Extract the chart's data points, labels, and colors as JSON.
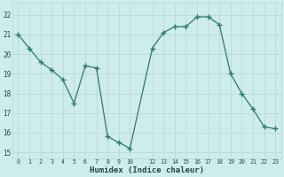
{
  "x": [
    0,
    1,
    2,
    3,
    4,
    5,
    6,
    7,
    8,
    9,
    10,
    12,
    13,
    14,
    15,
    16,
    17,
    18,
    19,
    20,
    21,
    22,
    23
  ],
  "y": [
    21.0,
    20.3,
    19.6,
    19.2,
    18.7,
    17.5,
    19.4,
    19.3,
    15.8,
    15.5,
    15.2,
    20.3,
    21.1,
    21.4,
    21.4,
    21.9,
    21.9,
    21.5,
    19.0,
    18.0,
    17.2,
    16.3,
    16.2
  ],
  "line_color": "#2a7a6a",
  "marker_color": "#2a7a6a",
  "bg_color": "#ceecea",
  "grid_major_color": "#b8dbd8",
  "grid_minor_color": "#d8efed",
  "xlabel": "Humidex (Indice chaleur)",
  "ylabel_ticks": [
    15,
    16,
    17,
    18,
    19,
    20,
    21,
    22
  ],
  "xlim": [
    -0.5,
    23.5
  ],
  "ylim": [
    14.7,
    22.6
  ],
  "xticks": [
    0,
    1,
    2,
    3,
    4,
    5,
    6,
    7,
    8,
    9,
    10,
    12,
    13,
    14,
    15,
    16,
    17,
    18,
    19,
    20,
    21,
    22,
    23
  ],
  "font_color": "#1a4a42"
}
